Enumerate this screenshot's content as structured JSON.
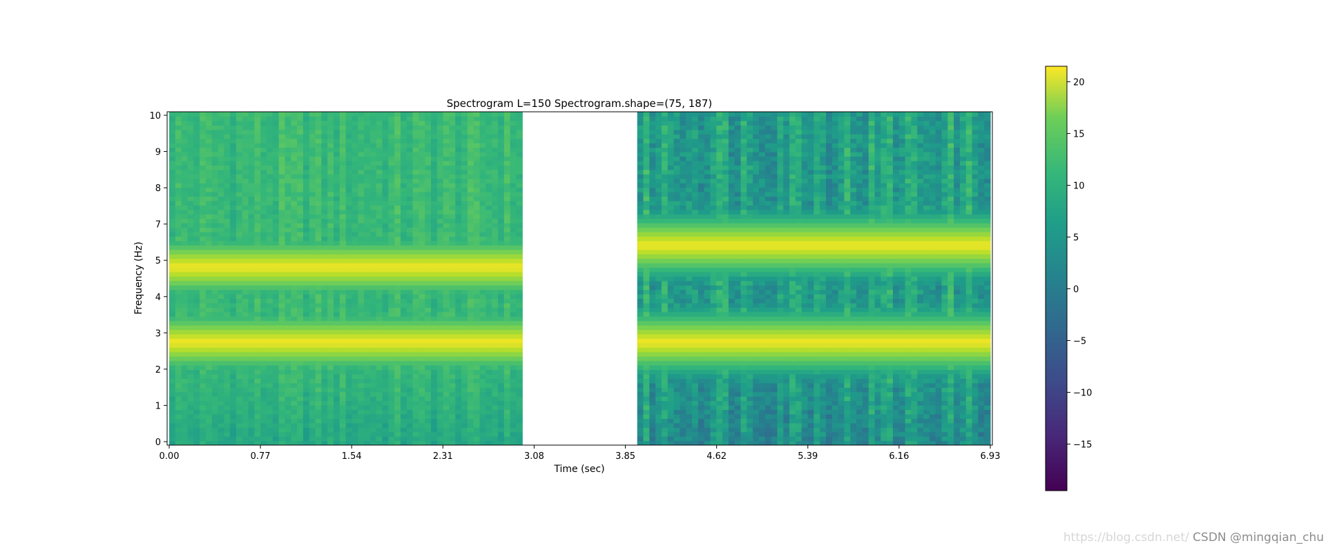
{
  "chart_data": {
    "type": "heatmap",
    "title": "Spectrogram L=150 Spectrogram.shape=(75, 187)",
    "xlabel": "Time (sec)",
    "ylabel": "Frequency (Hz)",
    "xlim": [
      0,
      6.93
    ],
    "ylim": [
      0,
      10
    ],
    "xticks": [
      "0.00",
      "0.77",
      "1.54",
      "2.31",
      "3.08",
      "3.85",
      "4.62",
      "5.39",
      "6.16",
      "6.93"
    ],
    "yticks": [
      "0",
      "1",
      "2",
      "3",
      "4",
      "5",
      "7",
      "8",
      "9",
      "10"
    ],
    "colormap": "viridis",
    "colorbar": {
      "range": [
        -19.5,
        21.5
      ],
      "ticks": [
        "20",
        "15",
        "10",
        "5",
        "0",
        "−5",
        "−10",
        "−15"
      ]
    },
    "missing_time_range": [
      2.98,
      3.95
    ],
    "segments": [
      {
        "time_range": [
          0.0,
          2.98
        ],
        "ridge_lines": [
          {
            "frequency": 3.1,
            "value": 21
          },
          {
            "frequency": 5.35,
            "value": 21
          }
        ],
        "background_level": 8,
        "noise_variation": "low"
      },
      {
        "time_range": [
          3.95,
          6.93
        ],
        "ridge_lines": [
          {
            "frequency": 3.1,
            "value": 21
          },
          {
            "frequency": 6.0,
            "value": 21
          }
        ],
        "background_level": 4,
        "noise_variation": "high"
      }
    ],
    "grid": false,
    "legend": "none"
  },
  "colors": {
    "viridis_low": "#440154",
    "viridis_mid": "#21918c",
    "viridis_high": "#fde725"
  },
  "watermark": {
    "faint": "https://blog.csdn.net/",
    "main": "CSDN @mingqian_chu"
  }
}
